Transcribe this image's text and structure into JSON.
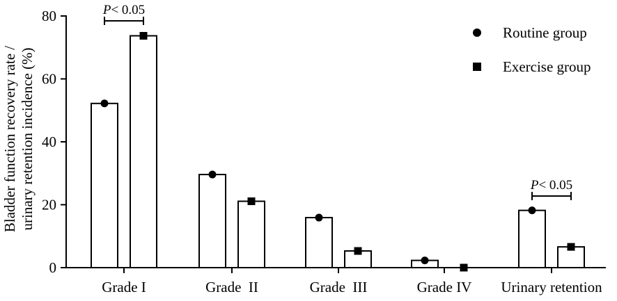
{
  "chart_data": {
    "type": "bar",
    "categories": [
      "Grade I",
      "Grade  II",
      "Grade  III",
      "Grade IV",
      "Urinary retention"
    ],
    "series": [
      {
        "name": "Routine group",
        "marker": "circle",
        "values": [
          52.2,
          29.6,
          15.9,
          2.3,
          18.2
        ]
      },
      {
        "name": "Exercise group",
        "marker": "square",
        "values": [
          73.7,
          21.1,
          5.3,
          0.0,
          6.6
        ]
      }
    ],
    "ylabel_line1": "Bladder function recovery rate /",
    "ylabel_line2": "urinary retention incidence (%)",
    "ylim": [
      0,
      80
    ],
    "yticks": [
      0,
      20,
      40,
      60,
      80
    ],
    "legend_position": "top-right",
    "grid": false,
    "annotations": [
      {
        "category_index": 0,
        "p_italic": "P",
        "text": "< 0.05"
      },
      {
        "category_index": 4,
        "p_italic": "P",
        "text": "< 0.05"
      }
    ]
  }
}
